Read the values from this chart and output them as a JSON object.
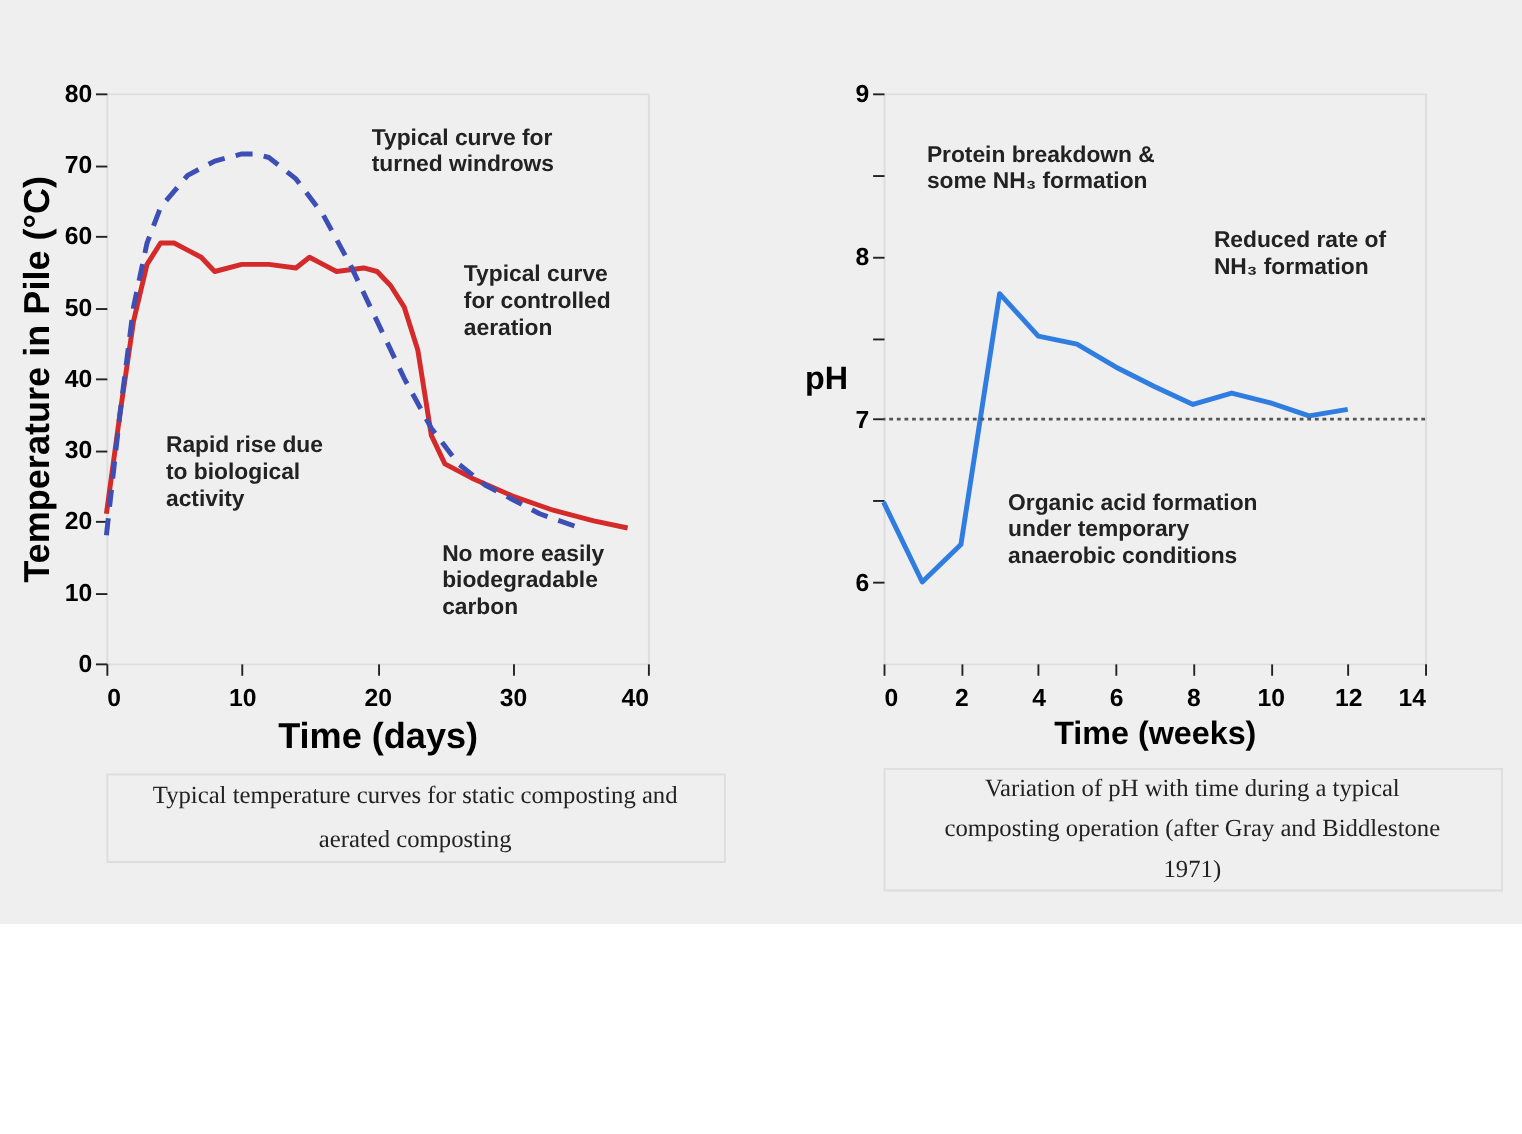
{
  "chart_data": [
    {
      "type": "line",
      "xlabel": "Time  (days)",
      "ylabel": "Temperature in Pile  (°C)",
      "xlim": [
        0,
        40
      ],
      "ylim": [
        0,
        80
      ],
      "xticks": [
        0,
        10,
        20,
        30,
        40
      ],
      "yticks": [
        0,
        10,
        20,
        30,
        40,
        50,
        60,
        70,
        80
      ],
      "series": [
        {
          "color": "#3d4fb5",
          "line_style": "dashed",
          "x": [
            0,
            1,
            2,
            3,
            4,
            6,
            8,
            10,
            11,
            12,
            14,
            16,
            18,
            20,
            22,
            24,
            26,
            28,
            30,
            32,
            35
          ],
          "values": [
            18,
            35,
            50,
            59,
            64,
            68.5,
            70.5,
            71.5,
            71.5,
            71,
            68,
            63,
            56,
            48,
            40,
            33,
            28,
            25,
            23,
            21,
            19
          ]
        },
        {
          "color": "#d42a2a",
          "line_style": "solid",
          "x": [
            0,
            1,
            2,
            3,
            4,
            5,
            6,
            7,
            8,
            10,
            12,
            14,
            15,
            16,
            17,
            19,
            20,
            21,
            22,
            23,
            23.5,
            24,
            25,
            27,
            30,
            33,
            36,
            38.5
          ],
          "values": [
            21,
            35,
            48,
            56,
            59,
            59,
            58,
            57,
            55,
            56,
            56,
            55.5,
            57,
            56,
            55,
            55.5,
            55,
            53,
            50,
            44,
            38,
            32,
            28,
            26,
            23.5,
            21.5,
            20,
            19
          ]
        }
      ],
      "annotations": [
        "Typical curve for\nturned windrows",
        "Typical curve\nfor controlled\naeration",
        "Rapid rise due\nto biological\nactivity",
        "No more easily\nbiodegradable\ncarbon",
        "Typical temperature curves for static composting and aerated composting"
      ]
    },
    {
      "type": "line",
      "xlabel": "Time  (weeks)",
      "ylabel": "pH",
      "xlim": [
        0,
        14
      ],
      "ylim": [
        5.5,
        9
      ],
      "xticks": [
        0,
        2,
        4,
        6,
        8,
        10,
        12,
        14
      ],
      "yticks": [
        6,
        {
          "value": 6.5,
          "label": null
        },
        7,
        {
          "value": 7.5,
          "label": null
        },
        8,
        {
          "value": 8.5,
          "label": null
        },
        9
      ],
      "series": [
        {
          "color": "#2f7de0",
          "line_style": "solid",
          "x": [
            0,
            1,
            2,
            3,
            4,
            5,
            6,
            7,
            8,
            9,
            10,
            11,
            12
          ],
          "values": [
            6.49,
            6.0,
            6.23,
            7.77,
            7.51,
            7.46,
            7.32,
            7.2,
            7.09,
            7.16,
            7.1,
            7.02,
            7.06
          ]
        }
      ],
      "ref_lines": [
        {
          "axis": "y",
          "value": 7,
          "color": "#555555",
          "line_style": "dotted"
        }
      ],
      "annotations": [
        "Protein breakdown &\nsome NH₃ formation",
        "Reduced rate of\nNH₃ formation",
        "Organic acid formation\nunder temporary\nanaerobic conditions",
        "Variation of pH with time during a typical composting operation (after Gray and Biddlestone 1971)"
      ]
    }
  ]
}
